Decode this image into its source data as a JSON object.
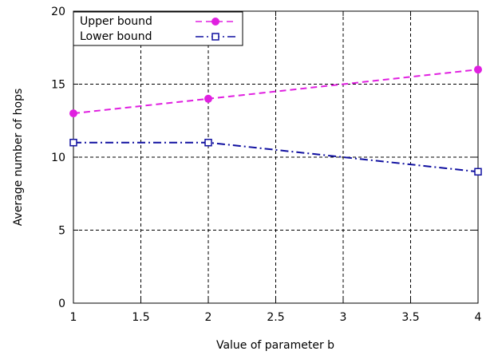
{
  "chart_data": {
    "type": "line",
    "xlabel": "Value of parameter b",
    "ylabel": "Average number of hops",
    "xlim": [
      1,
      4
    ],
    "ylim": [
      0,
      20
    ],
    "xticks": [
      1,
      1.5,
      2,
      2.5,
      3,
      3.5,
      4
    ],
    "yticks": [
      0,
      5,
      10,
      15,
      20
    ],
    "grid": true,
    "legend_position": "top-left",
    "series": [
      {
        "name": "Upper bound",
        "color": "#e020e0",
        "marker": "filled-circle",
        "line_style": "dashed",
        "x": [
          1,
          2,
          4
        ],
        "y": [
          13,
          14,
          16
        ]
      },
      {
        "name": "Lower bound",
        "color": "#1010a0",
        "marker": "open-square",
        "line_style": "dash-dot",
        "x": [
          1,
          2,
          4
        ],
        "y": [
          11,
          11,
          9
        ]
      }
    ]
  }
}
